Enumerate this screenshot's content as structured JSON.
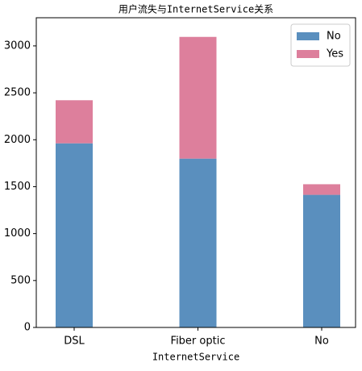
{
  "chart_data": {
    "type": "stacked_bar",
    "title": "用户流失与InternetService关系",
    "x_label": "InternetService",
    "categories": [
      "DSL",
      "Fiber optic",
      "No"
    ],
    "series": [
      {
        "name": "No",
        "color": "#5a8fbe",
        "values": [
          1962,
          1799,
          1413
        ]
      },
      {
        "name": "Yes",
        "color": "#dd7f9c",
        "values": [
          459,
          1297,
          113
        ]
      }
    ],
    "ylim": [
      0,
      3300
    ],
    "yticks": [
      0,
      500,
      1000,
      1500,
      2000,
      2500,
      3000
    ],
    "legend": "upper right"
  }
}
